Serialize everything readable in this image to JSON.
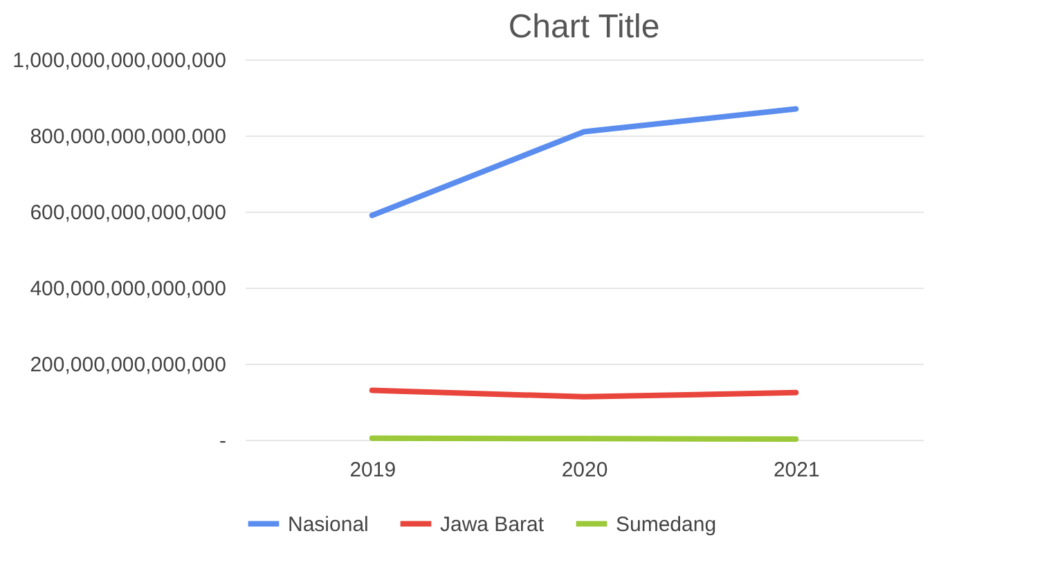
{
  "chart_data": {
    "type": "line",
    "title": "Chart Title",
    "categories": [
      "2019",
      "2020",
      "2021"
    ],
    "series": [
      {
        "name": "Nasional",
        "color": "#5b8def",
        "values": [
          590000000000000,
          810000000000000,
          870000000000000
        ]
      },
      {
        "name": "Jawa Barat",
        "color": "#e8453c",
        "values": [
          130000000000000,
          113000000000000,
          124000000000000
        ]
      },
      {
        "name": "Sumedang",
        "color": "#9bc93a",
        "values": [
          4000000000000,
          3000000000000,
          2000000000000
        ]
      }
    ],
    "ylim": [
      0,
      1000000000000000
    ],
    "yticks": [
      {
        "value": 0,
        "label": "-"
      },
      {
        "value": 200000000000000,
        "label": "200,000,000,000,000"
      },
      {
        "value": 400000000000000,
        "label": "400,000,000,000,000"
      },
      {
        "value": 600000000000000,
        "label": "600,000,000,000,000"
      },
      {
        "value": 800000000000000,
        "label": "800,000,000,000,000"
      },
      {
        "value": 1000000000000000,
        "label": "1,000,000,000,000,000"
      }
    ],
    "grid": "y",
    "legend": "bottom",
    "marker": "none",
    "line_style": "solid"
  }
}
